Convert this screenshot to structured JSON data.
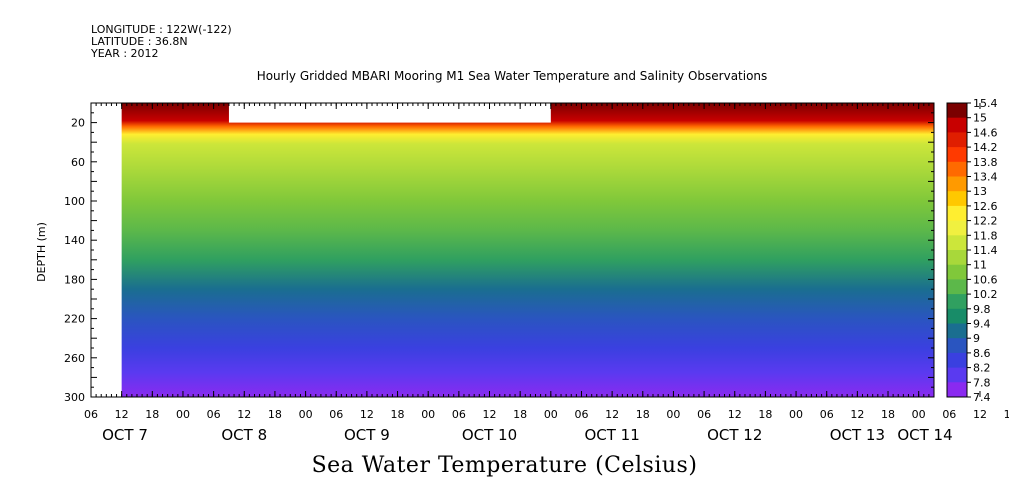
{
  "header": {
    "longitude": "LONGITUDE : 122W(-122)",
    "latitude": "LATITUDE : 36.8N",
    "year": "YEAR : 2012"
  },
  "chart_data": {
    "type": "heatmap",
    "title": "Hourly Gridded MBARI Mooring M1 Sea Water Temperature and Salinity Observations",
    "xlabel": "Sea Water Temperature (Celsius)",
    "ylabel": "DEPTH (m)",
    "y_reversed": true,
    "ylim": [
      300,
      0
    ],
    "ytick_labels": [
      "20",
      "60",
      "100",
      "140",
      "180",
      "220",
      "260",
      "300"
    ],
    "ytick_values": [
      20,
      60,
      100,
      140,
      180,
      220,
      260,
      300
    ],
    "x_hour_labels": [
      "06",
      "12",
      "18",
      "00",
      "06",
      "12",
      "18",
      "00",
      "06",
      "12",
      "18",
      "00",
      "06",
      "12",
      "18",
      "00",
      "06",
      "12",
      "18",
      "00",
      "06",
      "12",
      "18",
      "00",
      "06",
      "12",
      "18",
      "00",
      "06",
      "12",
      "18",
      "00"
    ],
    "x_date_labels": [
      "OCT  7",
      "OCT  8",
      "OCT  9",
      "OCT 10",
      "OCT 11",
      "OCT 12",
      "OCT 13",
      "OCT 14"
    ],
    "x_start": "2012-10-07 06:00",
    "x_end": "2012-10-14 03:00",
    "data_start": "2012-10-07 12:00",
    "missing_surface_gap": {
      "start": "2012-10-08 09:00",
      "end": "2012-10-11 00:00",
      "depth_bottom": 20
    },
    "colorbar": {
      "levels": [
        "15.4",
        "15",
        "14.6",
        "14.2",
        "13.8",
        "13.4",
        "13",
        "12.6",
        "12.2",
        "11.8",
        "11.4",
        "11",
        "10.6",
        "10.2",
        "9.8",
        "9.4",
        "9",
        "8.6",
        "8.2",
        "7.8",
        "7.4"
      ],
      "colors": [
        "#7a0000",
        "#c80000",
        "#e01e00",
        "#ff3a00",
        "#ff6a00",
        "#ff9a00",
        "#ffc800",
        "#ffee30",
        "#f0f040",
        "#cce63a",
        "#a8d83a",
        "#80c83a",
        "#5cb84a",
        "#30a060",
        "#188c68",
        "#1a6e90",
        "#2a55c0",
        "#3a40e0",
        "#5a3af0",
        "#8a2af0",
        "#c81ef0"
      ],
      "profile": [
        {
          "depth": 0,
          "temp": 15.0
        },
        {
          "depth": 18,
          "temp": 14.6
        },
        {
          "depth": 24,
          "temp": 13.6
        },
        {
          "depth": 32,
          "temp": 12.4
        },
        {
          "depth": 42,
          "temp": 11.6
        },
        {
          "depth": 70,
          "temp": 11.1
        },
        {
          "depth": 100,
          "temp": 10.7
        },
        {
          "depth": 130,
          "temp": 10.3
        },
        {
          "depth": 160,
          "temp": 9.8
        },
        {
          "depth": 190,
          "temp": 9.3
        },
        {
          "depth": 220,
          "temp": 8.8
        },
        {
          "depth": 250,
          "temp": 8.3
        },
        {
          "depth": 275,
          "temp": 8.0
        },
        {
          "depth": 300,
          "temp": 7.7
        }
      ]
    }
  }
}
